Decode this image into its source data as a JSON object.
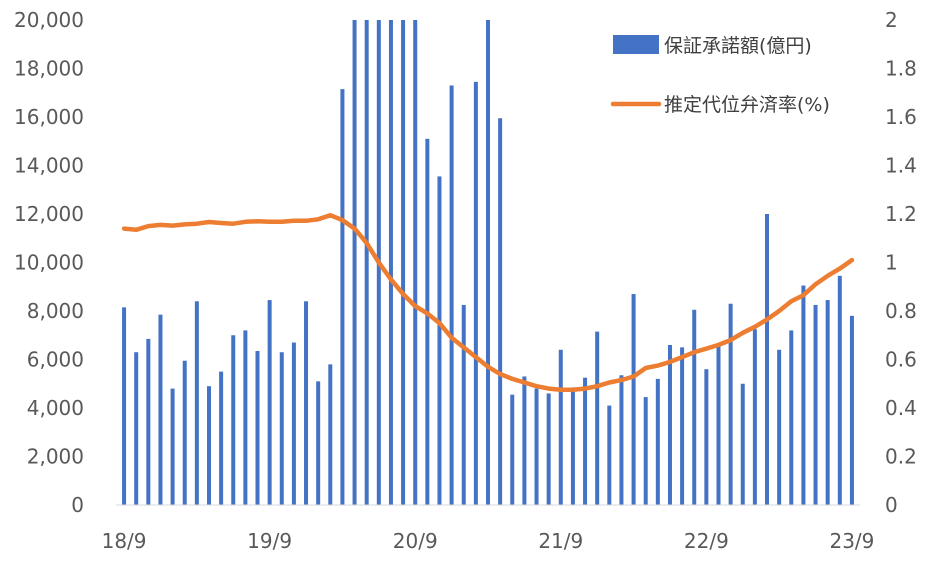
{
  "chart_data": {
    "type": "bar+line",
    "x_tick_labels": [
      "18/9",
      "19/9",
      "20/9",
      "21/9",
      "22/9",
      "23/9"
    ],
    "months": [
      "2018-09",
      "2018-10",
      "2018-11",
      "2018-12",
      "2019-01",
      "2019-02",
      "2019-03",
      "2019-04",
      "2019-05",
      "2019-06",
      "2019-07",
      "2019-08",
      "2019-09",
      "2019-10",
      "2019-11",
      "2019-12",
      "2020-01",
      "2020-02",
      "2020-03",
      "2020-04",
      "2020-05",
      "2020-06",
      "2020-07",
      "2020-08",
      "2020-09",
      "2020-10",
      "2020-11",
      "2020-12",
      "2021-01",
      "2021-02",
      "2021-03",
      "2021-04",
      "2021-05",
      "2021-06",
      "2021-07",
      "2021-08",
      "2021-09",
      "2021-10",
      "2021-11",
      "2021-12",
      "2022-01",
      "2022-02",
      "2022-03",
      "2022-04",
      "2022-05",
      "2022-06",
      "2022-07",
      "2022-08",
      "2022-09",
      "2022-10",
      "2022-11",
      "2022-12",
      "2023-01",
      "2023-02",
      "2023-03",
      "2023-04",
      "2023-05",
      "2023-06",
      "2023-07",
      "2023-08",
      "2023-09"
    ],
    "series": [
      {
        "name": "保証承諾額(億円)",
        "type": "bar",
        "axis": "left",
        "color": "#4472C4",
        "values": [
          8150,
          6300,
          6850,
          7850,
          4800,
          5950,
          8400,
          4900,
          5500,
          7000,
          7200,
          6350,
          8450,
          6300,
          6700,
          8400,
          5100,
          5800,
          17150,
          20000,
          20000,
          20000,
          20000,
          20000,
          20000,
          15100,
          13550,
          17300,
          8250,
          17450,
          20000,
          15950,
          4550,
          5300,
          4800,
          4600,
          6400,
          4850,
          5250,
          7150,
          4100,
          5350,
          8700,
          4450,
          5200,
          6600,
          6500,
          8050,
          5600,
          6550,
          8300,
          5000,
          7250,
          12000,
          6400,
          7200,
          9050,
          8250,
          8450,
          9450,
          7800
        ]
      },
      {
        "name": "推定代位弁済率(%)",
        "type": "line",
        "axis": "right",
        "color": "#ED7D31",
        "values": [
          1.14,
          1.135,
          1.15,
          1.155,
          1.152,
          1.157,
          1.16,
          1.167,
          1.163,
          1.16,
          1.168,
          1.17,
          1.168,
          1.168,
          1.172,
          1.172,
          1.178,
          1.195,
          1.175,
          1.14,
          1.08,
          1.0,
          0.93,
          0.87,
          0.82,
          0.79,
          0.75,
          0.69,
          0.65,
          0.61,
          0.57,
          0.54,
          0.52,
          0.505,
          0.49,
          0.48,
          0.475,
          0.475,
          0.48,
          0.49,
          0.505,
          0.515,
          0.53,
          0.565,
          0.575,
          0.59,
          0.61,
          0.63,
          0.645,
          0.66,
          0.68,
          0.71,
          0.735,
          0.765,
          0.8,
          0.84,
          0.865,
          0.91,
          0.945,
          0.975,
          1.01
        ]
      }
    ],
    "y_left": {
      "min": 0,
      "max": 20000,
      "step": 2000,
      "tick_labels": [
        "0",
        "2,000",
        "4,000",
        "6,000",
        "8,000",
        "10,000",
        "12,000",
        "14,000",
        "16,000",
        "18,000",
        "20,000"
      ]
    },
    "y_right": {
      "min": 0,
      "max": 2,
      "step": 0.2,
      "tick_labels": [
        "0",
        "0.2",
        "0.4",
        "0.6",
        "0.8",
        "1",
        "1.2",
        "1.4",
        "1.6",
        "1.8",
        "2"
      ]
    },
    "legend_position": "top-right",
    "grid": false
  }
}
